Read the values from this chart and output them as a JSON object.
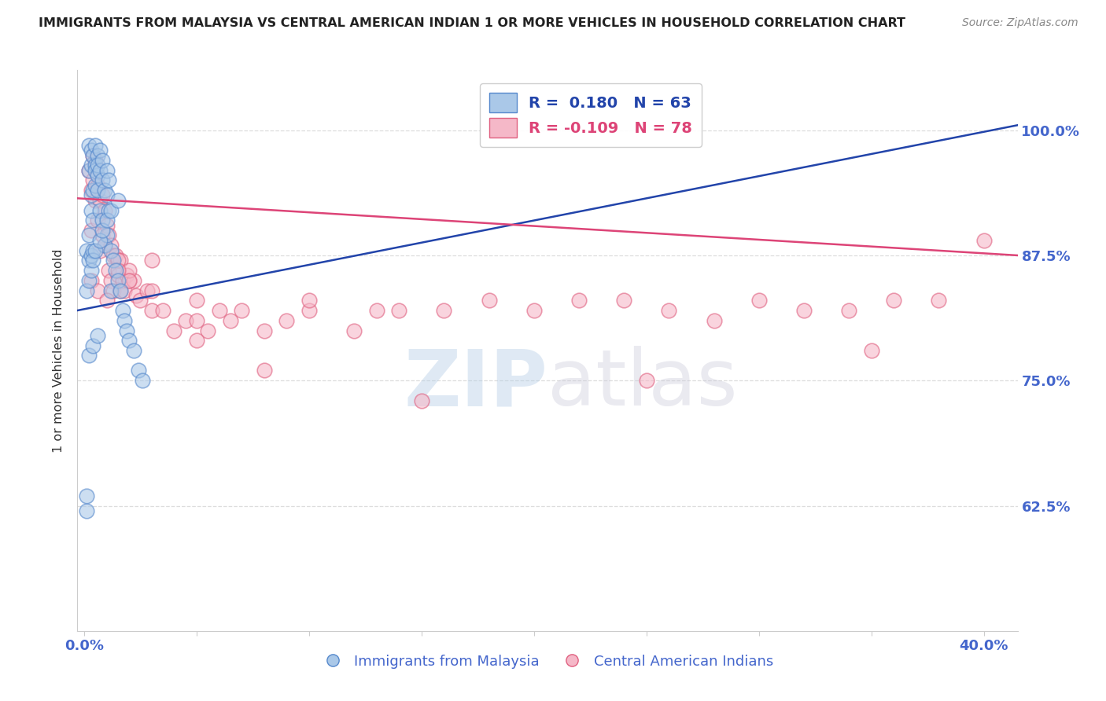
{
  "title": "IMMIGRANTS FROM MALAYSIA VS CENTRAL AMERICAN INDIAN 1 OR MORE VEHICLES IN HOUSEHOLD CORRELATION CHART",
  "source": "Source: ZipAtlas.com",
  "ylabel": "1 or more Vehicles in Household",
  "ytick_labels": [
    "100.0%",
    "87.5%",
    "75.0%",
    "62.5%"
  ],
  "ytick_values": [
    1.0,
    0.875,
    0.75,
    0.625
  ],
  "ymin": 0.5,
  "ymax": 1.06,
  "xmin": -0.003,
  "xmax": 0.415,
  "legend_r1": "R =  0.180",
  "legend_n1": "N = 63",
  "legend_r2": "R = -0.109",
  "legend_n2": "N = 78",
  "blue_scatter_color": "#aac8e8",
  "blue_edge_color": "#5588cc",
  "pink_scatter_color": "#f5b8c8",
  "pink_edge_color": "#e06080",
  "blue_line_color": "#2244aa",
  "pink_line_color": "#dd4477",
  "axis_color": "#4466cc",
  "title_color": "#222222",
  "source_color": "#888888",
  "grid_color": "#dddddd",
  "watermark_color": "#ccddef",
  "blue_x": [
    0.001,
    0.001,
    0.001,
    0.002,
    0.002,
    0.002,
    0.002,
    0.003,
    0.003,
    0.003,
    0.003,
    0.003,
    0.004,
    0.004,
    0.004,
    0.004,
    0.005,
    0.005,
    0.005,
    0.005,
    0.006,
    0.006,
    0.006,
    0.006,
    0.007,
    0.007,
    0.007,
    0.008,
    0.008,
    0.008,
    0.009,
    0.009,
    0.01,
    0.01,
    0.01,
    0.011,
    0.011,
    0.012,
    0.012,
    0.013,
    0.014,
    0.015,
    0.016,
    0.017,
    0.018,
    0.019,
    0.02,
    0.022,
    0.024,
    0.026,
    0.001,
    0.002,
    0.003,
    0.004,
    0.005,
    0.007,
    0.008,
    0.01,
    0.012,
    0.015,
    0.002,
    0.004,
    0.006
  ],
  "blue_y": [
    0.62,
    0.635,
    0.88,
    0.895,
    0.87,
    0.96,
    0.985,
    0.875,
    0.92,
    0.965,
    0.98,
    0.935,
    0.91,
    0.94,
    0.975,
    0.88,
    0.965,
    0.945,
    0.96,
    0.985,
    0.955,
    0.975,
    0.94,
    0.965,
    0.92,
    0.96,
    0.98,
    0.91,
    0.95,
    0.97,
    0.885,
    0.94,
    0.895,
    0.935,
    0.96,
    0.92,
    0.95,
    0.84,
    0.88,
    0.87,
    0.86,
    0.85,
    0.84,
    0.82,
    0.81,
    0.8,
    0.79,
    0.78,
    0.76,
    0.75,
    0.84,
    0.85,
    0.86,
    0.87,
    0.88,
    0.89,
    0.9,
    0.91,
    0.92,
    0.93,
    0.775,
    0.785,
    0.795
  ],
  "pink_x": [
    0.002,
    0.003,
    0.003,
    0.004,
    0.004,
    0.005,
    0.005,
    0.006,
    0.006,
    0.007,
    0.007,
    0.008,
    0.008,
    0.009,
    0.009,
    0.01,
    0.011,
    0.011,
    0.012,
    0.012,
    0.013,
    0.013,
    0.014,
    0.015,
    0.016,
    0.016,
    0.017,
    0.018,
    0.019,
    0.02,
    0.022,
    0.023,
    0.025,
    0.028,
    0.03,
    0.035,
    0.04,
    0.045,
    0.05,
    0.055,
    0.06,
    0.065,
    0.07,
    0.08,
    0.09,
    0.1,
    0.12,
    0.13,
    0.14,
    0.16,
    0.18,
    0.2,
    0.22,
    0.24,
    0.26,
    0.28,
    0.3,
    0.32,
    0.34,
    0.36,
    0.38,
    0.4,
    0.015,
    0.02,
    0.03,
    0.05,
    0.08,
    0.15,
    0.25,
    0.35,
    0.003,
    0.006,
    0.01,
    0.015,
    0.02,
    0.03,
    0.05,
    0.1
  ],
  "pink_y": [
    0.96,
    0.94,
    0.9,
    0.975,
    0.95,
    0.93,
    0.97,
    0.945,
    0.91,
    0.93,
    0.88,
    0.935,
    0.895,
    0.92,
    0.885,
    0.905,
    0.86,
    0.895,
    0.85,
    0.885,
    0.84,
    0.875,
    0.875,
    0.855,
    0.87,
    0.84,
    0.85,
    0.84,
    0.855,
    0.85,
    0.85,
    0.835,
    0.83,
    0.84,
    0.82,
    0.82,
    0.8,
    0.81,
    0.81,
    0.8,
    0.82,
    0.81,
    0.82,
    0.8,
    0.81,
    0.82,
    0.8,
    0.82,
    0.82,
    0.82,
    0.83,
    0.82,
    0.83,
    0.83,
    0.82,
    0.81,
    0.83,
    0.82,
    0.82,
    0.83,
    0.83,
    0.89,
    0.87,
    0.86,
    0.87,
    0.79,
    0.76,
    0.73,
    0.75,
    0.78,
    0.85,
    0.84,
    0.83,
    0.86,
    0.85,
    0.84,
    0.83,
    0.83
  ],
  "blue_trend_x": [
    -0.003,
    0.415
  ],
  "blue_trend_y": [
    0.82,
    1.005
  ],
  "pink_trend_x": [
    -0.003,
    0.415
  ],
  "pink_trend_y": [
    0.932,
    0.875
  ]
}
